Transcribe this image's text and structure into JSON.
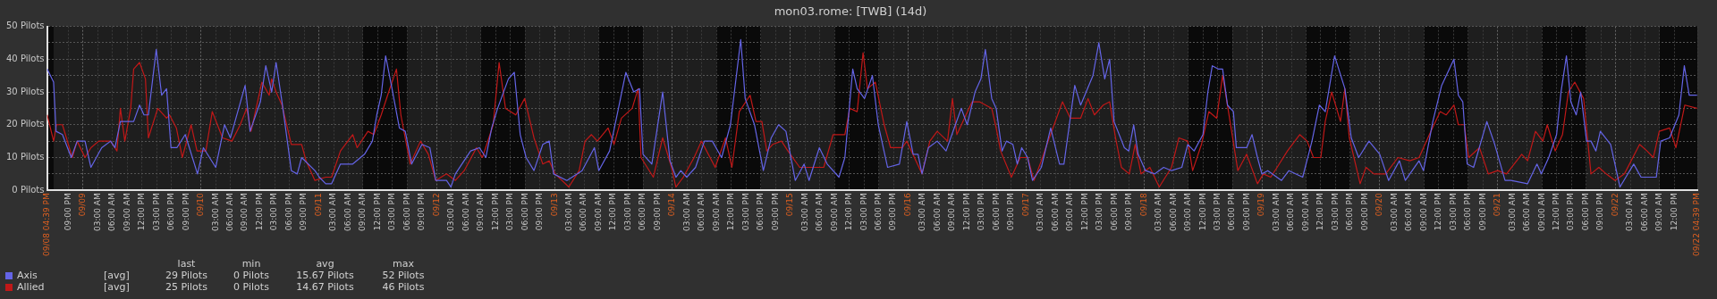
{
  "chart_data": {
    "type": "line",
    "title": "mon03.rome: [TWB] (14d)",
    "legend": "bottom left",
    "grid": true,
    "marker": "none",
    "line_style": "solid",
    "xlim": [
      "--09-08T16:39",
      "--09-22T16:39"
    ],
    "ylim": [
      0,
      50
    ],
    "yticks": [
      {
        "value": 0,
        "label": "0 Pilots"
      },
      {
        "value": 5,
        "label": null
      },
      {
        "value": 10,
        "label": "10 Pilots"
      },
      {
        "value": 15,
        "label": null
      },
      {
        "value": 20,
        "label": "20 Pilots"
      },
      {
        "value": 25,
        "label": null
      },
      {
        "value": 30,
        "label": "30 Pilots"
      },
      {
        "value": 35,
        "label": null
      },
      {
        "value": 40,
        "label": "40 Pilots"
      },
      {
        "value": 45,
        "label": null
      },
      {
        "value": 50,
        "label": "50 Pilots"
      }
    ],
    "xticks": [
      {
        "value": "--09-08T16:39",
        "label": "09/08 04:39 PM"
      },
      {
        "value": "--09-08T21:00",
        "label": "09:00 PM"
      },
      {
        "value": "--09-09T00:00",
        "label": "09/09"
      },
      {
        "value": "--09-09T03:00",
        "label": "03:00 AM"
      },
      {
        "value": "--09-09T06:00",
        "label": "06:00 AM"
      },
      {
        "value": "--09-09T09:00",
        "label": "09:00 AM"
      },
      {
        "value": "--09-09T12:00",
        "label": "12:00 PM"
      },
      {
        "value": "--09-09T15:00",
        "label": "03:00 PM"
      },
      {
        "value": "--09-09T18:00",
        "label": "06:00 PM"
      },
      {
        "value": "--09-09T21:00",
        "label": "09:00 PM"
      },
      {
        "value": "--09-10T00:00",
        "label": "09/10"
      },
      {
        "value": "--09-10T03:00",
        "label": "03:00 AM"
      },
      {
        "value": "--09-10T06:00",
        "label": "06:00 AM"
      },
      {
        "value": "--09-10T09:00",
        "label": "09:00 AM"
      },
      {
        "value": "--09-10T12:00",
        "label": "12:00 PM"
      },
      {
        "value": "--09-10T15:00",
        "label": "03:00 PM"
      },
      {
        "value": "--09-10T18:00",
        "label": "06:00 PM"
      },
      {
        "value": "--09-10T21:00",
        "label": "09:00 PM"
      },
      {
        "value": "--09-11T00:00",
        "label": "09/11"
      },
      {
        "value": "--09-11T03:00",
        "label": "03:00 AM"
      },
      {
        "value": "--09-11T06:00",
        "label": "06:00 AM"
      },
      {
        "value": "--09-11T09:00",
        "label": "09:00 AM"
      },
      {
        "value": "--09-11T12:00",
        "label": "12:00 PM"
      },
      {
        "value": "--09-11T15:00",
        "label": "03:00 PM"
      },
      {
        "value": "--09-11T18:00",
        "label": "06:00 PM"
      },
      {
        "value": "--09-11T21:00",
        "label": "09:00 PM"
      },
      {
        "value": "--09-12T00:00",
        "label": "09/12"
      },
      {
        "value": "--09-12T03:00",
        "label": "03:00 AM"
      },
      {
        "value": "--09-12T06:00",
        "label": "06:00 AM"
      },
      {
        "value": "--09-12T09:00",
        "label": "09:00 AM"
      },
      {
        "value": "--09-12T12:00",
        "label": "12:00 PM"
      },
      {
        "value": "--09-12T15:00",
        "label": "03:00 PM"
      },
      {
        "value": "--09-12T18:00",
        "label": "06:00 PM"
      },
      {
        "value": "--09-12T21:00",
        "label": "09:00 PM"
      },
      {
        "value": "--09-13T00:00",
        "label": "09/13"
      },
      {
        "value": "--09-13T03:00",
        "label": "03:00 AM"
      },
      {
        "value": "--09-13T06:00",
        "label": "06:00 AM"
      },
      {
        "value": "--09-13T09:00",
        "label": "09:00 AM"
      },
      {
        "value": "--09-13T12:00",
        "label": "12:00 PM"
      },
      {
        "value": "--09-13T15:00",
        "label": "03:00 PM"
      },
      {
        "value": "--09-13T18:00",
        "label": "06:00 PM"
      },
      {
        "value": "--09-13T21:00",
        "label": "09:00 PM"
      },
      {
        "value": "--09-14T00:00",
        "label": "09/14"
      },
      {
        "value": "--09-14T03:00",
        "label": "03:00 AM"
      },
      {
        "value": "--09-14T06:00",
        "label": "06:00 AM"
      },
      {
        "value": "--09-14T09:00",
        "label": "09:00 AM"
      },
      {
        "value": "--09-14T12:00",
        "label": "12:00 PM"
      },
      {
        "value": "--09-14T15:00",
        "label": "03:00 PM"
      },
      {
        "value": "--09-14T18:00",
        "label": "06:00 PM"
      },
      {
        "value": "--09-14T21:00",
        "label": "09:00 PM"
      },
      {
        "value": "--09-15T00:00",
        "label": "09/15"
      },
      {
        "value": "--09-15T03:00",
        "label": "03:00 AM"
      },
      {
        "value": "--09-15T06:00",
        "label": "06:00 AM"
      },
      {
        "value": "--09-15T09:00",
        "label": "09:00 AM"
      },
      {
        "value": "--09-15T12:00",
        "label": "12:00 PM"
      },
      {
        "value": "--09-15T15:00",
        "label": "03:00 PM"
      },
      {
        "value": "--09-15T18:00",
        "label": "06:00 PM"
      },
      {
        "value": "--09-15T21:00",
        "label": "09:00 PM"
      },
      {
        "value": "--09-16T00:00",
        "label": "09/16"
      },
      {
        "value": "--09-16T03:00",
        "label": "03:00 AM"
      },
      {
        "value": "--09-16T06:00",
        "label": "06:00 AM"
      },
      {
        "value": "--09-16T09:00",
        "label": "09:00 AM"
      },
      {
        "value": "--09-16T12:00",
        "label": "12:00 PM"
      },
      {
        "value": "--09-16T15:00",
        "label": "03:00 PM"
      },
      {
        "value": "--09-16T18:00",
        "label": "06:00 PM"
      },
      {
        "value": "--09-16T21:00",
        "label": "09:00 PM"
      },
      {
        "value": "--09-17T00:00",
        "label": "09/17"
      },
      {
        "value": "--09-17T03:00",
        "label": "03:00 AM"
      },
      {
        "value": "--09-17T06:00",
        "label": "06:00 AM"
      },
      {
        "value": "--09-17T09:00",
        "label": "09:00 AM"
      },
      {
        "value": "--09-17T12:00",
        "label": "12:00 PM"
      },
      {
        "value": "--09-17T15:00",
        "label": "03:00 PM"
      },
      {
        "value": "--09-17T18:00",
        "label": "06:00 PM"
      },
      {
        "value": "--09-17T21:00",
        "label": "09:00 PM"
      },
      {
        "value": "--09-18T00:00",
        "label": "09/18"
      },
      {
        "value": "--09-18T03:00",
        "label": "03:00 AM"
      },
      {
        "value": "--09-18T06:00",
        "label": "06:00 AM"
      },
      {
        "value": "--09-18T09:00",
        "label": "09:00 AM"
      },
      {
        "value": "--09-18T12:00",
        "label": "12:00 PM"
      },
      {
        "value": "--09-18T15:00",
        "label": "03:00 PM"
      },
      {
        "value": "--09-18T18:00",
        "label": "06:00 PM"
      },
      {
        "value": "--09-18T21:00",
        "label": "09:00 PM"
      },
      {
        "value": "--09-19T00:00",
        "label": "09/19"
      },
      {
        "value": "--09-19T03:00",
        "label": "03:00 AM"
      },
      {
        "value": "--09-19T06:00",
        "label": "06:00 AM"
      },
      {
        "value": "--09-19T09:00",
        "label": "09:00 AM"
      },
      {
        "value": "--09-19T12:00",
        "label": "12:00 PM"
      },
      {
        "value": "--09-19T15:00",
        "label": "03:00 PM"
      },
      {
        "value": "--09-19T18:00",
        "label": "06:00 PM"
      },
      {
        "value": "--09-19T21:00",
        "label": "09:00 PM"
      },
      {
        "value": "--09-20T00:00",
        "label": "09/20"
      },
      {
        "value": "--09-20T03:00",
        "label": "03:00 AM"
      },
      {
        "value": "--09-20T06:00",
        "label": "06:00 AM"
      },
      {
        "value": "--09-20T09:00",
        "label": "09:00 AM"
      },
      {
        "value": "--09-20T12:00",
        "label": "12:00 PM"
      },
      {
        "value": "--09-20T15:00",
        "label": "03:00 PM"
      },
      {
        "value": "--09-20T18:00",
        "label": "06:00 PM"
      },
      {
        "value": "--09-20T21:00",
        "label": "09:00 PM"
      },
      {
        "value": "--09-21T00:00",
        "label": "09/21"
      },
      {
        "value": "--09-21T03:00",
        "label": "03:00 AM"
      },
      {
        "value": "--09-21T06:00",
        "label": "06:00 AM"
      },
      {
        "value": "--09-21T09:00",
        "label": "09:00 AM"
      },
      {
        "value": "--09-21T12:00",
        "label": "12:00 PM"
      },
      {
        "value": "--09-21T15:00",
        "label": "03:00 PM"
      },
      {
        "value": "--09-21T18:00",
        "label": "06:00 PM"
      },
      {
        "value": "--09-21T21:00",
        "label": "09:00 PM"
      },
      {
        "value": "--09-22T00:00",
        "label": "09/22"
      },
      {
        "value": "--09-22T03:00",
        "label": "03:00 AM"
      },
      {
        "value": "--09-22T06:00",
        "label": "06:00 AM"
      },
      {
        "value": "--09-22T09:00",
        "label": "09:00 AM"
      },
      {
        "value": "--09-22T12:00",
        "label": "12:00 PM"
      },
      {
        "value": "--09-22T16:39",
        "label": "09/22 04:39 PM"
      }
    ],
    "bands": [
      {
        "axis": "x",
        "from": "--09-08T16:39",
        "to": "--09-08T18:00",
        "color": "#0a0a0a"
      },
      {
        "axis": "x",
        "from": "--09-11T09:00",
        "to": "--09-11T18:00",
        "color": "#0a0a0a"
      },
      {
        "axis": "x",
        "from": "--09-12T09:00",
        "to": "--09-12T18:00",
        "color": "#0a0a0a"
      },
      {
        "axis": "x",
        "from": "--09-13T09:00",
        "to": "--09-13T18:00",
        "color": "#0a0a0a"
      },
      {
        "axis": "x",
        "from": "--09-14T09:00",
        "to": "--09-14T18:00",
        "color": "#0a0a0a"
      },
      {
        "axis": "x",
        "from": "--09-15T09:00",
        "to": "--09-15T18:00",
        "color": "#0a0a0a"
      },
      {
        "axis": "x",
        "from": "--09-18T09:00",
        "to": "--09-18T18:00",
        "color": "#0a0a0a"
      },
      {
        "axis": "x",
        "from": "--09-19T09:00",
        "to": "--09-19T18:00",
        "color": "#0a0a0a"
      },
      {
        "axis": "x",
        "from": "--09-20T09:00",
        "to": "--09-20T18:00",
        "color": "#0a0a0a"
      },
      {
        "axis": "x",
        "from": "--09-21T09:00",
        "to": "--09-21T18:00",
        "color": "#0a0a0a"
      },
      {
        "axis": "x",
        "from": "--09-22T09:00",
        "to": "--09-22T16:39",
        "color": "#0a0a0a"
      }
    ],
    "annotations": [
      "last",
      "min",
      "avg",
      "max",
      "[avg]",
      "29 Pilots",
      "0 Pilots",
      "15.67 Pilots",
      "52 Pilots",
      "[avg]",
      "25 Pilots",
      "0 Pilots",
      "14.67 Pilots",
      "46 Pilots"
    ],
    "series": [
      {
        "name": "Axis",
        "color": "#6464e6",
        "x": [
          "--09-08T16:42",
          "--09-08T18:00",
          "--09-08T18:30",
          "--09-08T19:48",
          "--09-08T21:36",
          "--09-08T22:48",
          "--09-09T00:24",
          "--09-09T01:36",
          "--09-09T03:48",
          "--09-09T05:36",
          "--09-09T06:30",
          "--09-09T07:36",
          "--09-09T10:18",
          "--09-09T11:30",
          "--09-09T12:24",
          "--09-09T13:18",
          "--09-09T14:54",
          "--09-09T16:00",
          "--09-09T17:00",
          "--09-09T17:54",
          "--09-09T19:06",
          "--09-09T20:48",
          "--09-09T23:18",
          "--09-10T00:30",
          "--09-10T03:00",
          "--09-10T04:48",
          "--09-10T06:00",
          "--09-10T09:00",
          "--09-10T10:00",
          "--09-10T12:06",
          "--09-10T13:12",
          "--09-10T14:24",
          "--09-10T15:18",
          "--09-10T16:30",
          "--09-10T18:24",
          "--09-10T19:36",
          "--09-10T20:30",
          "--09-10T23:12",
          "--09-11T00:06",
          "--09-11T01:24",
          "--09-11T02:36",
          "--09-11T04:24",
          "--09-11T06:54",
          "--09-11T09:18",
          "--09-11T10:54",
          "--09-11T11:48",
          "--09-11T12:42",
          "--09-11T13:36",
          "--09-11T14:54",
          "--09-11T16:24",
          "--09-11T17:36",
          "--09-11T18:54",
          "--09-11T21:00",
          "--09-11T22:36",
          "--09-11T23:48",
          "--09-12T02:00",
          "--09-12T02:54",
          "--09-12T03:48",
          "--09-12T06:54",
          "--09-12T08:42",
          "--09-12T10:00",
          "--09-12T11:12",
          "--09-12T12:24",
          "--09-12T14:36",
          "--09-12T15:48",
          "--09-12T17:00",
          "--09-12T18:12",
          "--09-12T19:48",
          "--09-12T21:36",
          "--09-12T22:54",
          "--09-12T23:48",
          "--09-13T02:30",
          "--09-13T05:36",
          "--09-13T08:06",
          "--09-13T09:00",
          "--09-13T11:12",
          "--09-13T13:00",
          "--09-13T14:30",
          "--09-13T16:06",
          "--09-13T17:18",
          "--09-13T18:00",
          "--09-13T19:48",
          "--09-13T22:00",
          "--09-13T23:30",
          "--09-14T00:42",
          "--09-14T01:42",
          "--09-14T02:54",
          "--09-14T04:42",
          "--09-14T06:30",
          "--09-14T08:06",
          "--09-14T10:00",
          "--09-14T11:48",
          "--09-14T13:54",
          "--09-14T14:48",
          "--09-14T16:42",
          "--09-14T18:30",
          "--09-14T20:06",
          "--09-14T21:36",
          "--09-14T23:06",
          "--09-15T01:00",
          "--09-15T02:48",
          "--09-15T03:48",
          "--09-15T05:54",
          "--09-15T07:30",
          "--09-15T09:54",
          "--09-15T11:06",
          "--09-15T12:42",
          "--09-15T13:36",
          "--09-15T15:06",
          "--09-15T16:42",
          "--09-15T17:54",
          "--09-15T19:48",
          "--09-15T22:12",
          "--09-15T23:42",
          "--09-16T01:00",
          "--09-16T02:00",
          "--09-16T02:48",
          "--09-16T04:06",
          "--09-16T05:54",
          "--09-16T07:42",
          "--09-16T09:36",
          "--09-16T10:48",
          "--09-16T12:00",
          "--09-16T13:36",
          "--09-16T14:48",
          "--09-16T15:42",
          "--09-16T17:00",
          "--09-16T17:54",
          "--09-16T19:06",
          "--09-16T20:00",
          "--09-16T21:18",
          "--09-16T22:12",
          "--09-16T23:06",
          "--09-17T00:18",
          "--09-17T01:18",
          "--09-17T03:06",
          "--09-17T05:00",
          "--09-17T06:48",
          "--09-17T07:42",
          "--09-17T09:54",
          "--09-17T11:06",
          "--09-17T13:36",
          "--09-17T14:48",
          "--09-17T16:00",
          "--09-17T17:00",
          "--09-17T17:54",
          "--09-17T20:00",
          "--09-17T20:54",
          "--09-17T21:54",
          "--09-17T22:48",
          "--09-18T00:18",
          "--09-18T02:12",
          "--09-18T04:00",
          "--09-18T05:36",
          "--09-18T07:42",
          "--09-18T08:54",
          "--09-18T10:12",
          "--09-18T12:00",
          "--09-18T13:00",
          "--09-18T13:54",
          "--09-18T15:06",
          "--09-18T16:00",
          "--09-18T17:00",
          "--09-18T18:12",
          "--09-18T18:48",
          "--09-18T20:54",
          "--09-18T22:00",
          "--09-18T23:06",
          "--09-19T00:00",
          "--09-19T01:12",
          "--09-19T04:00",
          "--09-19T05:30",
          "--09-19T08:18",
          "--09-19T10:12",
          "--09-19T11:42",
          "--09-19T12:54",
          "--09-19T14:48",
          "--09-19T16:54",
          "--09-19T18:12",
          "--09-19T19:42",
          "--09-19T21:48",
          "--09-20T00:00",
          "--09-20T01:48",
          "--09-20T04:00",
          "--09-20T05:12",
          "--09-20T08:00",
          "--09-20T08:54",
          "--09-20T10:48",
          "--09-20T12:36",
          "--09-20T15:06",
          "--09-20T16:00",
          "--09-20T16:54",
          "--09-20T17:48",
          "--09-20T19:06",
          "--09-20T21:48",
          "--09-20T23:24",
          "--09-21T01:30",
          "--09-21T02:42",
          "--09-21T06:06",
          "--09-21T08:00",
          "--09-21T08:54",
          "--09-21T10:24",
          "--09-21T12:00",
          "--09-21T12:54",
          "--09-21T14:00",
          "--09-21T14:54",
          "--09-21T16:00",
          "--09-21T16:54",
          "--09-21T18:06",
          "--09-21T19:00",
          "--09-21T20:00",
          "--09-21T20:54",
          "--09-21T23:00",
          "--09-22T00:54",
          "--09-22T02:06",
          "--09-22T03:42",
          "--09-22T05:12",
          "--09-22T08:18",
          "--09-22T09:12",
          "--09-22T11:00",
          "--09-22T12:54",
          "--09-22T14:00",
          "--09-22T15:00",
          "--09-22T16:36"
        ],
        "values": [
          37,
          33,
          18,
          17,
          10,
          15,
          15,
          7,
          13,
          15,
          13,
          21,
          21,
          26,
          23,
          23,
          43,
          29,
          31,
          13,
          13,
          17,
          5,
          13,
          7,
          20,
          16,
          32,
          18,
          27,
          38,
          30,
          39,
          27,
          6,
          5,
          10,
          6,
          4,
          2,
          2,
          8,
          8,
          11,
          15,
          23,
          29,
          41,
          31,
          19,
          18,
          8,
          14,
          13,
          3,
          3,
          1,
          5,
          12,
          13,
          10,
          19,
          25,
          34,
          36,
          17,
          10,
          6,
          14,
          15,
          5,
          3,
          6,
          13,
          6,
          12,
          25,
          36,
          30,
          31,
          11,
          8,
          30,
          9,
          4,
          6,
          4,
          7,
          15,
          15,
          10,
          20,
          46,
          28,
          20,
          6,
          16,
          20,
          18,
          3,
          8,
          3,
          13,
          8,
          4,
          10,
          37,
          31,
          28,
          35,
          20,
          7,
          8,
          21,
          11,
          11,
          5,
          13,
          15,
          12,
          20,
          25,
          20,
          30,
          34,
          43,
          28,
          25,
          12,
          15,
          14,
          8,
          13,
          10,
          3,
          7,
          19,
          8,
          8,
          32,
          26,
          35,
          45,
          34,
          40,
          21,
          13,
          12,
          20,
          11,
          6,
          5,
          7,
          6,
          7,
          14,
          12,
          17,
          30,
          38,
          37,
          37,
          26,
          24,
          13,
          13,
          17,
          10,
          5,
          6,
          3,
          6,
          4,
          15,
          26,
          24,
          41,
          31,
          16,
          10,
          15,
          11,
          3,
          9,
          3,
          9,
          6,
          21,
          32,
          40,
          29,
          27,
          8,
          7,
          21,
          14,
          3,
          3,
          2,
          8,
          5,
          10,
          17,
          30,
          41,
          27,
          23,
          30,
          15,
          15,
          12,
          18,
          14,
          1,
          4,
          8,
          4,
          4,
          15,
          16,
          23,
          38,
          29,
          29
        ]
      },
      {
        "name": "Allied",
        "color": "#c01818",
        "x": [
          "--09-08T16:42",
          "--09-08T18:00",
          "--09-08T18:36",
          "--09-08T19:48",
          "--09-08T21:48",
          "--09-08T22:48",
          "--09-09T00:24",
          "--09-09T01:36",
          "--09-09T03:12",
          "--09-09T05:36",
          "--09-09T06:54",
          "--09-09T07:36",
          "--09-09T08:30",
          "--09-09T09:42",
          "--09-09T10:18",
          "--09-09T11:30",
          "--09-09T12:42",
          "--09-09T13:18",
          "--09-09T15:12",
          "--09-09T17:00",
          "--09-09T17:36",
          "--09-09T19:00",
          "--09-09T20:12",
          "--09-09T22:00",
          "--09-09T23:12",
          "--09-10T01:00",
          "--09-10T02:18",
          "--09-10T04:24",
          "--09-10T06:18",
          "--09-10T08:00",
          "--09-10T09:18",
          "--09-10T10:12",
          "--09-10T12:24",
          "--09-10T13:54",
          "--09-10T14:24",
          "--09-10T15:18",
          "--09-10T16:30",
          "--09-10T18:24",
          "--09-10T20:30",
          "--09-10T21:24",
          "--09-10T23:12",
          "--09-11T01:24",
          "--09-11T02:36",
          "--09-11T04:24",
          "--09-11T06:54",
          "--09-11T07:48",
          "--09-11T10:00",
          "--09-11T11:12",
          "--09-11T12:42",
          "--09-11T14:00",
          "--09-11T15:48",
          "--09-11T16:42",
          "--09-11T18:36",
          "--09-11T20:42",
          "--09-11T22:18",
          "--09-11T23:48",
          "--09-12T02:00",
          "--09-12T03:48",
          "--09-12T05:36",
          "--09-12T08:06",
          "--09-12T09:18",
          "--09-12T11:30",
          "--09-12T12:42",
          "--09-12T14:00",
          "--09-12T16:06",
          "--09-12T17:54",
          "--09-12T19:48",
          "--09-12T21:36",
          "--09-12T22:54",
          "--09-13T00:06",
          "--09-13T02:54",
          "--09-13T05:00",
          "--09-13T06:12",
          "--09-13T07:30",
          "--09-13T08:42",
          "--09-13T10:54",
          "--09-13T12:06",
          "--09-13T13:36",
          "--09-13T15:48",
          "--09-13T17:00",
          "--09-13T17:36",
          "--09-13T20:06",
          "--09-13T22:00",
          "--09-13T23:48",
          "--09-14T00:42",
          "--09-14T02:12",
          "--09-14T04:24",
          "--09-14T05:54",
          "--09-14T08:42",
          "--09-14T10:48",
          "--09-14T12:06",
          "--09-14T13:36",
          "--09-14T15:48",
          "--09-14T17:00",
          "--09-14T18:12",
          "--09-14T19:12",
          "--09-14T20:24",
          "--09-14T22:12",
          "--09-14T23:30",
          "--09-15T01:54",
          "--09-15T04:24",
          "--09-15T06:48",
          "--09-15T08:42",
          "--09-15T11:06",
          "--09-15T12:06",
          "--09-15T13:36",
          "--09-15T14:48",
          "--09-15T15:42",
          "--09-15T17:18",
          "--09-15T19:06",
          "--09-15T20:24",
          "--09-15T22:48",
          "--09-15T23:42",
          "--09-16T02:48",
          "--09-16T04:24",
          "--09-16T05:54",
          "--09-16T08:00",
          "--09-16T09:00",
          "--09-16T09:54",
          "--09-16T13:00",
          "--09-16T14:30",
          "--09-16T17:00",
          "--09-16T17:54",
          "--09-16T18:48",
          "--09-16T21:00",
          "--09-16T22:48",
          "--09-17T00:18",
          "--09-17T01:36",
          "--09-17T03:06",
          "--09-17T04:00",
          "--09-17T07:24",
          "--09-17T09:00",
          "--09-17T11:06",
          "--09-17T12:36",
          "--09-17T13:54",
          "--09-17T15:42",
          "--09-17T17:00",
          "--09-17T18:12",
          "--09-17T19:24",
          "--09-17T21:00",
          "--09-17T22:12",
          "--09-17T23:24",
          "--09-18T01:12",
          "--09-18T03:06",
          "--09-18T05:36",
          "--09-18T07:06",
          "--09-18T08:54",
          "--09-18T09:54",
          "--09-18T11:42",
          "--09-18T13:12",
          "--09-18T14:48",
          "--09-18T16:00",
          "--09-18T17:12",
          "--09-18T19:06",
          "--09-18T20:54",
          "--09-18T23:06",
          "--09-19T00:18",
          "--09-19T01:48",
          "--09-19T03:06",
          "--09-19T05:12",
          "--09-19T07:42",
          "--09-19T09:12",
          "--09-19T10:30",
          "--09-19T12:00",
          "--09-19T12:54",
          "--09-19T14:12",
          "--09-19T16:00",
          "--09-19T16:54",
          "--09-19T17:48",
          "--09-19T20:00",
          "--09-19T21:12",
          "--09-19T22:48",
          "--09-20T01:12",
          "--09-20T03:42",
          "--09-20T06:06",
          "--09-20T08:00",
          "--09-20T10:06",
          "--09-20T12:18",
          "--09-20T13:30",
          "--09-20T15:06",
          "--09-20T16:00",
          "--09-20T17:12",
          "--09-20T18:06",
          "--09-20T20:18",
          "--09-20T22:06",
          "--09-21T00:00",
          "--09-21T01:48",
          "--09-21T04:54",
          "--09-21T06:06",
          "--09-21T07:42",
          "--09-21T09:12",
          "--09-21T10:06",
          "--09-21T11:42",
          "--09-21T13:12",
          "--09-21T14:24",
          "--09-21T15:42",
          "--09-21T17:30",
          "--09-21T19:00",
          "--09-21T20:36",
          "--09-21T22:06",
          "--09-21T23:54",
          "--09-22T01:48",
          "--09-22T04:54",
          "--09-22T06:24",
          "--09-22T07:42",
          "--09-22T08:54",
          "--09-22T11:00",
          "--09-22T12:18",
          "--09-22T14:06",
          "--09-22T16:36"
        ],
        "values": [
          23,
          15,
          20,
          20,
          10,
          15,
          10,
          13,
          15,
          15,
          12,
          25,
          15,
          25,
          37,
          39,
          34,
          16,
          25,
          22,
          23,
          19,
          10,
          20,
          12,
          12,
          24,
          16,
          15,
          20,
          25,
          18,
          33,
          29,
          34,
          30,
          26,
          14,
          14,
          9,
          3,
          4,
          4,
          12,
          17,
          13,
          18,
          17,
          23,
          29,
          37,
          23,
          8,
          15,
          11,
          3,
          5,
          3,
          6,
          13,
          10,
          20,
          39,
          25,
          23,
          28,
          16,
          8,
          9,
          5,
          1,
          6,
          15,
          17,
          15,
          19,
          14,
          22,
          25,
          31,
          10,
          4,
          16,
          7,
          1,
          4,
          10,
          15,
          7,
          16,
          7,
          24,
          29,
          21,
          21,
          12,
          14,
          15,
          12,
          7,
          7,
          7,
          17,
          17,
          25,
          24,
          42,
          31,
          33,
          20,
          13,
          13,
          15,
          5,
          15,
          18,
          15,
          28,
          17,
          27,
          27,
          25,
          19,
          12,
          4,
          10,
          10,
          3,
          9,
          13,
          27,
          22,
          22,
          28,
          23,
          26,
          27,
          16,
          7,
          5,
          14,
          5,
          7,
          1,
          7,
          16,
          15,
          6,
          14,
          24,
          22,
          35,
          24,
          6,
          11,
          2,
          5,
          4,
          7,
          12,
          17,
          15,
          10,
          10,
          21,
          30,
          21,
          31,
          16,
          2,
          7,
          5,
          5,
          10,
          9,
          10,
          17,
          24,
          23,
          26,
          20,
          20,
          10,
          13,
          5,
          6,
          5,
          11,
          9,
          18,
          15,
          20,
          12,
          17,
          30,
          33,
          28,
          5,
          7,
          5,
          3,
          5,
          14,
          12,
          10,
          18,
          19,
          13,
          26,
          25
        ]
      }
    ]
  }
}
